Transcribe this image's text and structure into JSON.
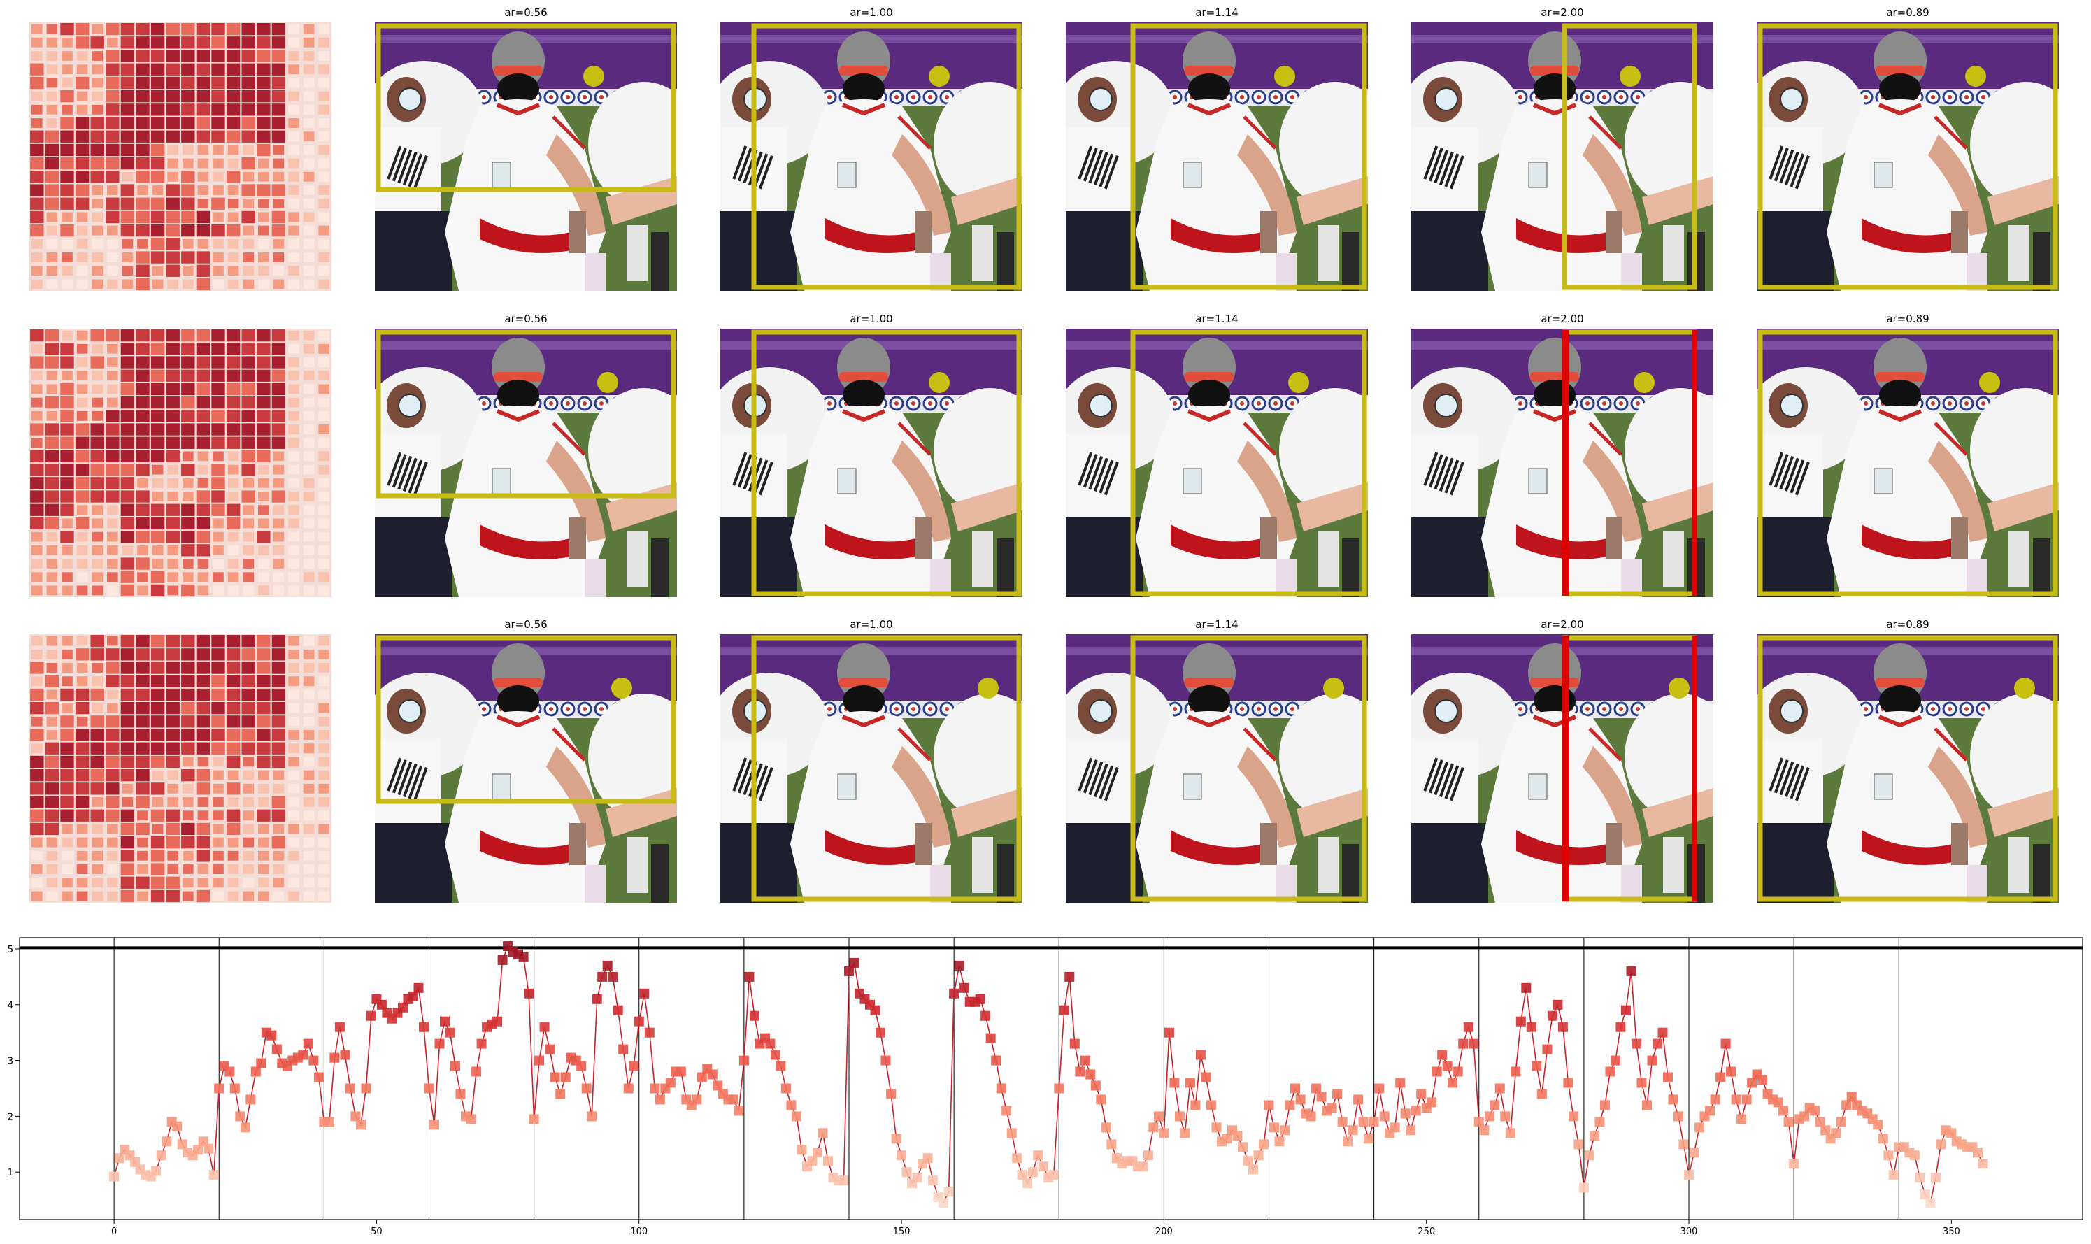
{
  "panels": {
    "rows": 3,
    "cols": [
      {
        "title": "",
        "has_heatmap": true
      },
      {
        "title": "ar=0.56",
        "crop": "0.56"
      },
      {
        "title": "ar=1.00",
        "crop": "1.00"
      },
      {
        "title": "ar=1.14",
        "crop": "1.14"
      },
      {
        "title": "ar=2.00",
        "crop": "2.00"
      },
      {
        "title": "ar=0.89",
        "crop": "0.89"
      }
    ],
    "box_color": "#c8bb16",
    "alt_box_color": "#e00000",
    "marker_color": "#c8c010",
    "heatmap_colors": [
      "#fde8e0",
      "#f8c2ae",
      "#f39a80",
      "#e86a5a",
      "#c93a3e",
      "#a82030"
    ],
    "red_box_rows": [
      1,
      2
    ]
  },
  "chart_data": {
    "type": "line",
    "title": "",
    "xlabel": "",
    "ylabel": "",
    "xlim": [
      -18,
      375
    ],
    "ylim": [
      0.15,
      5.2
    ],
    "xticks": [
      0,
      50,
      100,
      150,
      200,
      250,
      300,
      350
    ],
    "yticks": [
      1,
      2,
      3,
      4,
      5
    ],
    "vlines": [
      0,
      20,
      40,
      60,
      80,
      100,
      120,
      140,
      160,
      180,
      200,
      220,
      240,
      260,
      280,
      300,
      320,
      340
    ],
    "hline": 5.02,
    "line_color": "#c8222a",
    "marker": "square",
    "x_start": 0,
    "x_step": 1,
    "y": [
      0.92,
      1.25,
      1.4,
      1.3,
      1.18,
      1.05,
      0.95,
      0.92,
      1.02,
      1.3,
      1.55,
      1.9,
      1.82,
      1.5,
      1.35,
      1.3,
      1.4,
      1.55,
      1.42,
      0.95,
      2.5,
      2.9,
      2.8,
      2.5,
      2.0,
      1.8,
      2.3,
      2.8,
      2.95,
      3.5,
      3.45,
      3.2,
      2.95,
      2.9,
      3.0,
      3.05,
      3.1,
      3.3,
      3.0,
      2.7,
      1.9,
      1.9,
      3.05,
      3.6,
      3.1,
      2.5,
      2.0,
      1.85,
      2.5,
      3.8,
      4.1,
      4.0,
      3.85,
      3.75,
      3.85,
      3.95,
      4.1,
      4.15,
      4.3,
      3.6,
      2.5,
      1.85,
      3.3,
      3.7,
      3.5,
      2.9,
      2.4,
      2.0,
      1.95,
      2.8,
      3.3,
      3.6,
      3.65,
      3.7,
      4.8,
      5.05,
      4.95,
      4.9,
      4.85,
      4.2,
      1.95,
      3.0,
      3.6,
      3.2,
      2.7,
      2.4,
      2.7,
      3.05,
      3.0,
      2.9,
      2.5,
      2.0,
      4.1,
      4.5,
      4.7,
      4.5,
      3.9,
      3.2,
      2.5,
      2.9,
      3.7,
      4.2,
      3.5,
      2.5,
      2.3,
      2.5,
      2.6,
      2.8,
      2.8,
      2.3,
      2.2,
      2.3,
      2.7,
      2.85,
      2.75,
      2.55,
      2.4,
      2.3,
      2.3,
      2.1,
      3.0,
      4.5,
      3.8,
      3.3,
      3.4,
      3.3,
      3.1,
      2.9,
      2.5,
      2.2,
      2.0,
      1.4,
      1.1,
      1.2,
      1.35,
      1.7,
      1.2,
      0.9,
      0.85,
      0.85,
      4.6,
      4.75,
      4.2,
      4.1,
      4.0,
      3.9,
      3.5,
      3.0,
      2.4,
      1.6,
      1.3,
      1.0,
      0.8,
      0.9,
      1.15,
      1.25,
      0.85,
      0.55,
      0.45,
      0.65,
      4.2,
      4.7,
      4.3,
      4.05,
      4.05,
      4.1,
      3.8,
      3.4,
      3.0,
      2.5,
      2.1,
      1.7,
      1.25,
      0.95,
      0.8,
      1.0,
      1.3,
      1.1,
      0.9,
      0.95,
      2.5,
      3.9,
      4.5,
      3.3,
      2.8,
      3.0,
      2.75,
      2.55,
      2.3,
      1.8,
      1.5,
      1.25,
      1.15,
      1.2,
      1.2,
      1.1,
      1.1,
      1.3,
      1.8,
      2.0,
      1.7,
      3.5,
      2.6,
      2.0,
      1.7,
      2.6,
      2.2,
      3.1,
      2.7,
      2.2,
      1.8,
      1.55,
      1.6,
      1.75,
      1.65,
      1.45,
      1.2,
      1.05,
      1.3,
      1.5,
      2.2,
      1.8,
      1.55,
      1.75,
      2.2,
      2.5,
      2.3,
      2.05,
      2.0,
      2.5,
      2.35,
      2.1,
      2.15,
      2.4,
      1.9,
      1.55,
      1.75,
      2.3,
      1.9,
      1.6,
      1.9,
      2.5,
      2.0,
      1.7,
      1.8,
      2.6,
      2.05,
      1.75,
      2.1,
      2.4,
      2.15,
      2.25,
      2.8,
      3.1,
      2.9,
      2.6,
      2.8,
      3.3,
      3.6,
      3.3,
      1.9,
      1.75,
      2.0,
      2.2,
      2.5,
      2.0,
      1.7,
      2.8,
      3.7,
      4.3,
      3.6,
      2.9,
      2.4,
      3.2,
      3.8,
      4.0,
      3.6,
      2.6,
      2.0,
      1.5,
      0.72,
      1.3,
      1.65,
      1.9,
      2.2,
      2.8,
      3.0,
      3.6,
      3.9,
      4.6,
      3.3,
      2.6,
      2.2,
      3.0,
      3.3,
      3.5,
      2.7,
      2.3,
      2.0,
      1.5,
      0.95,
      1.35,
      1.8,
      2.0,
      2.1,
      2.3,
      2.7,
      3.3,
      2.8,
      2.3,
      1.95,
      2.3,
      2.6,
      2.75,
      2.65,
      2.4,
      2.3,
      2.25,
      2.1,
      1.9,
      1.15,
      1.95,
      2.0,
      2.15,
      2.1,
      1.9,
      1.75,
      1.6,
      1.7,
      1.9,
      2.2,
      2.35,
      2.2,
      2.1,
      2.05,
      1.95,
      1.85,
      1.6,
      1.3,
      0.95,
      1.45,
      1.45,
      1.35,
      1.3,
      0.9,
      0.6,
      0.45,
      0.9,
      1.5,
      1.75,
      1.7,
      1.55,
      1.5,
      1.45,
      1.45,
      1.35,
      1.15
    ]
  }
}
